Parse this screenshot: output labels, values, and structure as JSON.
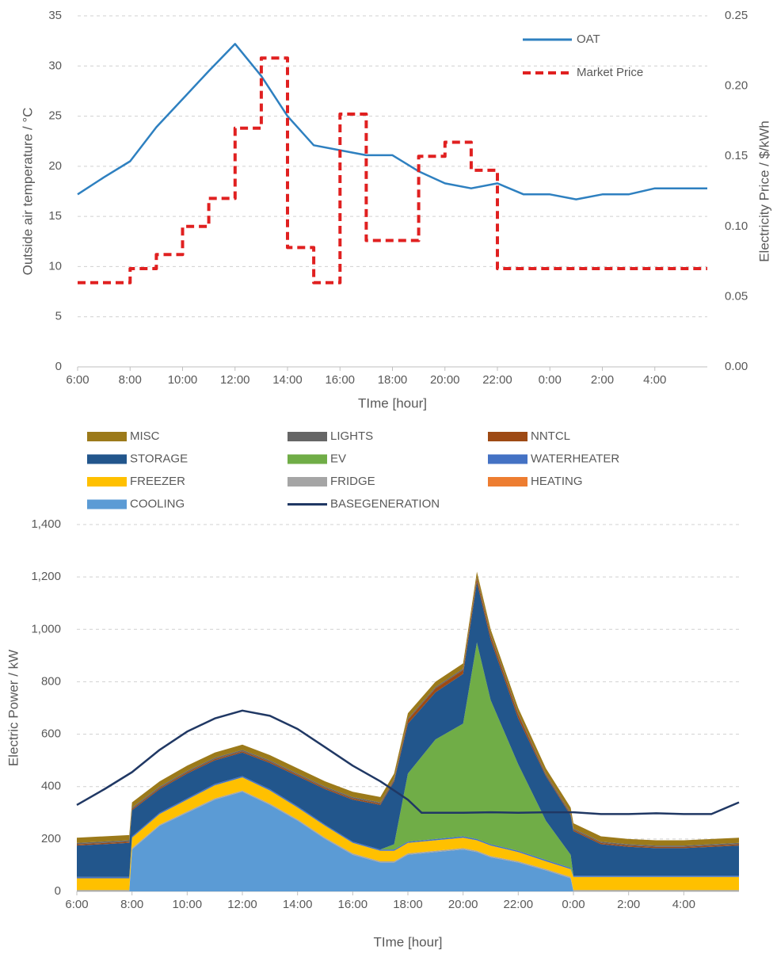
{
  "chart_data": [
    {
      "type": "line",
      "xlabel": "TIme [hour]",
      "ylabel": "Outside air temperature / °C",
      "y2label": "Electricity Price / $/kWh",
      "xlim": [
        6,
        30
      ],
      "xticks": [
        {
          "value": 6,
          "label": "6:00"
        },
        {
          "value": 8,
          "label": "8:00"
        },
        {
          "value": 10,
          "label": "10:00"
        },
        {
          "value": 12,
          "label": "12:00"
        },
        {
          "value": 14,
          "label": "14:00"
        },
        {
          "value": 16,
          "label": "16:00"
        },
        {
          "value": 18,
          "label": "18:00"
        },
        {
          "value": 20,
          "label": "20:00"
        },
        {
          "value": 22,
          "label": "22:00"
        },
        {
          "value": 24,
          "label": "0:00"
        },
        {
          "value": 26,
          "label": "2:00"
        },
        {
          "value": 28,
          "label": "4:00"
        }
      ],
      "ylim": [
        0,
        35
      ],
      "yticks": [
        0,
        5,
        10,
        15,
        20,
        25,
        30,
        35
      ],
      "y2lim": [
        0,
        0.25
      ],
      "y2ticks": [
        {
          "value": 0,
          "label": "0.00"
        },
        {
          "value": 0.05,
          "label": "0.05"
        },
        {
          "value": 0.1,
          "label": "0.10"
        },
        {
          "value": 0.15,
          "label": "0.15"
        },
        {
          "value": 0.2,
          "label": "0.20"
        },
        {
          "value": 0.25,
          "label": "0.25"
        }
      ],
      "grid": true,
      "legend": "upper right",
      "series": [
        {
          "name": "OAT",
          "color": "#2e80c0",
          "x": [
            6,
            7,
            8,
            9,
            10,
            11,
            12,
            13,
            14,
            15,
            16,
            17,
            18,
            19,
            20,
            21,
            22,
            23,
            24,
            25,
            26,
            27,
            28,
            29,
            30
          ],
          "values": [
            17.2,
            18.9,
            20.5,
            23.9,
            26.7,
            29.5,
            32.2,
            29.0,
            25.0,
            22.1,
            21.6,
            21.1,
            21.1,
            19.5,
            18.3,
            17.8,
            18.3,
            17.2,
            17.2,
            16.7,
            17.2,
            17.2,
            17.8,
            17.8,
            17.8
          ]
        },
        {
          "name": "Market Price",
          "color": "#e02020",
          "dashed": true,
          "step": "post",
          "axis": "y2",
          "x": [
            6,
            7,
            8,
            9,
            10,
            11,
            12,
            13,
            14,
            15,
            16,
            17,
            18,
            19,
            20,
            21,
            22,
            23,
            24,
            25,
            26,
            27,
            28,
            29
          ],
          "values": [
            0.06,
            0.06,
            0.07,
            0.08,
            0.1,
            0.12,
            0.17,
            0.22,
            0.085,
            0.06,
            0.18,
            0.09,
            0.09,
            0.15,
            0.16,
            0.14,
            0.07,
            0.07,
            0.07,
            0.07,
            0.07,
            0.07,
            0.07,
            0.07
          ]
        }
      ]
    },
    {
      "type": "stacked_area",
      "xlabel": "TIme [hour]",
      "ylabel": "Electric Power / kW",
      "xlim": [
        6,
        30
      ],
      "xticks": [
        {
          "value": 6,
          "label": "6:00"
        },
        {
          "value": 8,
          "label": "8:00"
        },
        {
          "value": 10,
          "label": "10:00"
        },
        {
          "value": 12,
          "label": "12:00"
        },
        {
          "value": 14,
          "label": "14:00"
        },
        {
          "value": 16,
          "label": "16:00"
        },
        {
          "value": 18,
          "label": "18:00"
        },
        {
          "value": 20,
          "label": "20:00"
        },
        {
          "value": 22,
          "label": "22:00"
        },
        {
          "value": 24,
          "label": "0:00"
        },
        {
          "value": 26,
          "label": "2:00"
        },
        {
          "value": 28,
          "label": "4:00"
        }
      ],
      "ylim": [
        0,
        1400
      ],
      "yticks": [
        0,
        200,
        400,
        600,
        800,
        {
          "value": 1000,
          "label": "1,000"
        },
        {
          "value": 1200,
          "label": "1,200"
        },
        {
          "value": 1400,
          "label": "1,400"
        }
      ],
      "grid": true,
      "legend": "top",
      "x": [
        6,
        7.9,
        8,
        9,
        10,
        11,
        12,
        13,
        14,
        15,
        16,
        17,
        17.5,
        18,
        19,
        20,
        20.5,
        21,
        22,
        23,
        23.9,
        24,
        25,
        26,
        27,
        28,
        29,
        30
      ],
      "series": [
        {
          "name": "MISC",
          "color": "#9c7a1a",
          "values": [
            20,
            20,
            20,
            20,
            20,
            20,
            20,
            20,
            20,
            20,
            20,
            20,
            20,
            20,
            20,
            20,
            20,
            20,
            20,
            20,
            20,
            20,
            20,
            20,
            20,
            20,
            20,
            20
          ]
        },
        {
          "name": "LIGHTS",
          "color": "#666666",
          "values": [
            5,
            5,
            5,
            5,
            5,
            5,
            5,
            5,
            5,
            5,
            5,
            5,
            5,
            5,
            5,
            5,
            5,
            5,
            5,
            5,
            5,
            5,
            5,
            5,
            5,
            5,
            5,
            5
          ]
        },
        {
          "name": "NNTCL",
          "color": "#9e4a14",
          "values": [
            5,
            5,
            5,
            5,
            5,
            5,
            5,
            5,
            5,
            5,
            5,
            5,
            5,
            15,
            15,
            15,
            15,
            15,
            15,
            5,
            5,
            5,
            5,
            5,
            5,
            5,
            5,
            5
          ]
        },
        {
          "name": "STORAGE",
          "color": "#22568c",
          "values": [
            120,
            130,
            100,
            90,
            95,
            90,
            90,
            100,
            115,
            135,
            160,
            170,
            240,
            190,
            180,
            190,
            230,
            230,
            175,
            170,
            150,
            170,
            120,
            110,
            105,
            105,
            110,
            115
          ]
        },
        {
          "name": "EV",
          "color": "#70ad47",
          "values": [
            0,
            0,
            0,
            0,
            0,
            0,
            0,
            0,
            0,
            0,
            0,
            0,
            20,
            260,
            380,
            430,
            750,
            550,
            330,
            150,
            50,
            0,
            0,
            0,
            0,
            0,
            0,
            0
          ]
        },
        {
          "name": "WATERHEATER",
          "color": "#4472c4",
          "values": [
            5,
            5,
            5,
            5,
            5,
            5,
            5,
            5,
            5,
            5,
            5,
            5,
            5,
            5,
            5,
            5,
            5,
            5,
            5,
            5,
            5,
            5,
            5,
            5,
            5,
            5,
            5,
            5
          ]
        },
        {
          "name": "FREEZER",
          "color": "#ffc000",
          "values": [
            45,
            45,
            40,
            40,
            45,
            50,
            50,
            50,
            45,
            45,
            40,
            40,
            40,
            40,
            40,
            40,
            40,
            40,
            35,
            30,
            30,
            50,
            50,
            50,
            50,
            50,
            50,
            50
          ]
        },
        {
          "name": "FRIDGE",
          "color": "#a5a5a5",
          "values": [
            5,
            5,
            5,
            5,
            5,
            5,
            5,
            5,
            5,
            5,
            5,
            5,
            5,
            5,
            5,
            5,
            5,
            5,
            5,
            5,
            5,
            5,
            5,
            5,
            5,
            5,
            5,
            5
          ]
        },
        {
          "name": "HEATING",
          "color": "#ed7d31",
          "values": [
            0,
            0,
            0,
            0,
            0,
            0,
            0,
            0,
            0,
            0,
            0,
            0,
            0,
            0,
            0,
            0,
            0,
            0,
            0,
            0,
            0,
            0,
            0,
            0,
            0,
            0,
            0,
            0
          ]
        },
        {
          "name": "COOLING",
          "color": "#5b9bd5",
          "values": [
            0,
            0,
            160,
            250,
            300,
            350,
            380,
            330,
            270,
            200,
            140,
            110,
            110,
            140,
            150,
            160,
            150,
            130,
            110,
            80,
            50,
            0,
            0,
            0,
            0,
            0,
            0,
            0
          ]
        },
        {
          "name": "BASEGENERATION",
          "color": "#203864",
          "type": "line",
          "x": [
            6,
            7,
            8,
            9,
            10,
            11,
            12,
            13,
            14,
            15,
            16,
            17,
            18,
            18.5,
            19,
            20,
            21,
            22,
            23,
            24,
            25,
            26,
            27,
            28,
            29,
            30
          ],
          "values": [
            330,
            390,
            455,
            540,
            610,
            660,
            690,
            670,
            620,
            550,
            480,
            420,
            350,
            300,
            300,
            300,
            302,
            300,
            302,
            302,
            295,
            295,
            298,
            295,
            295,
            340
          ]
        }
      ]
    }
  ]
}
